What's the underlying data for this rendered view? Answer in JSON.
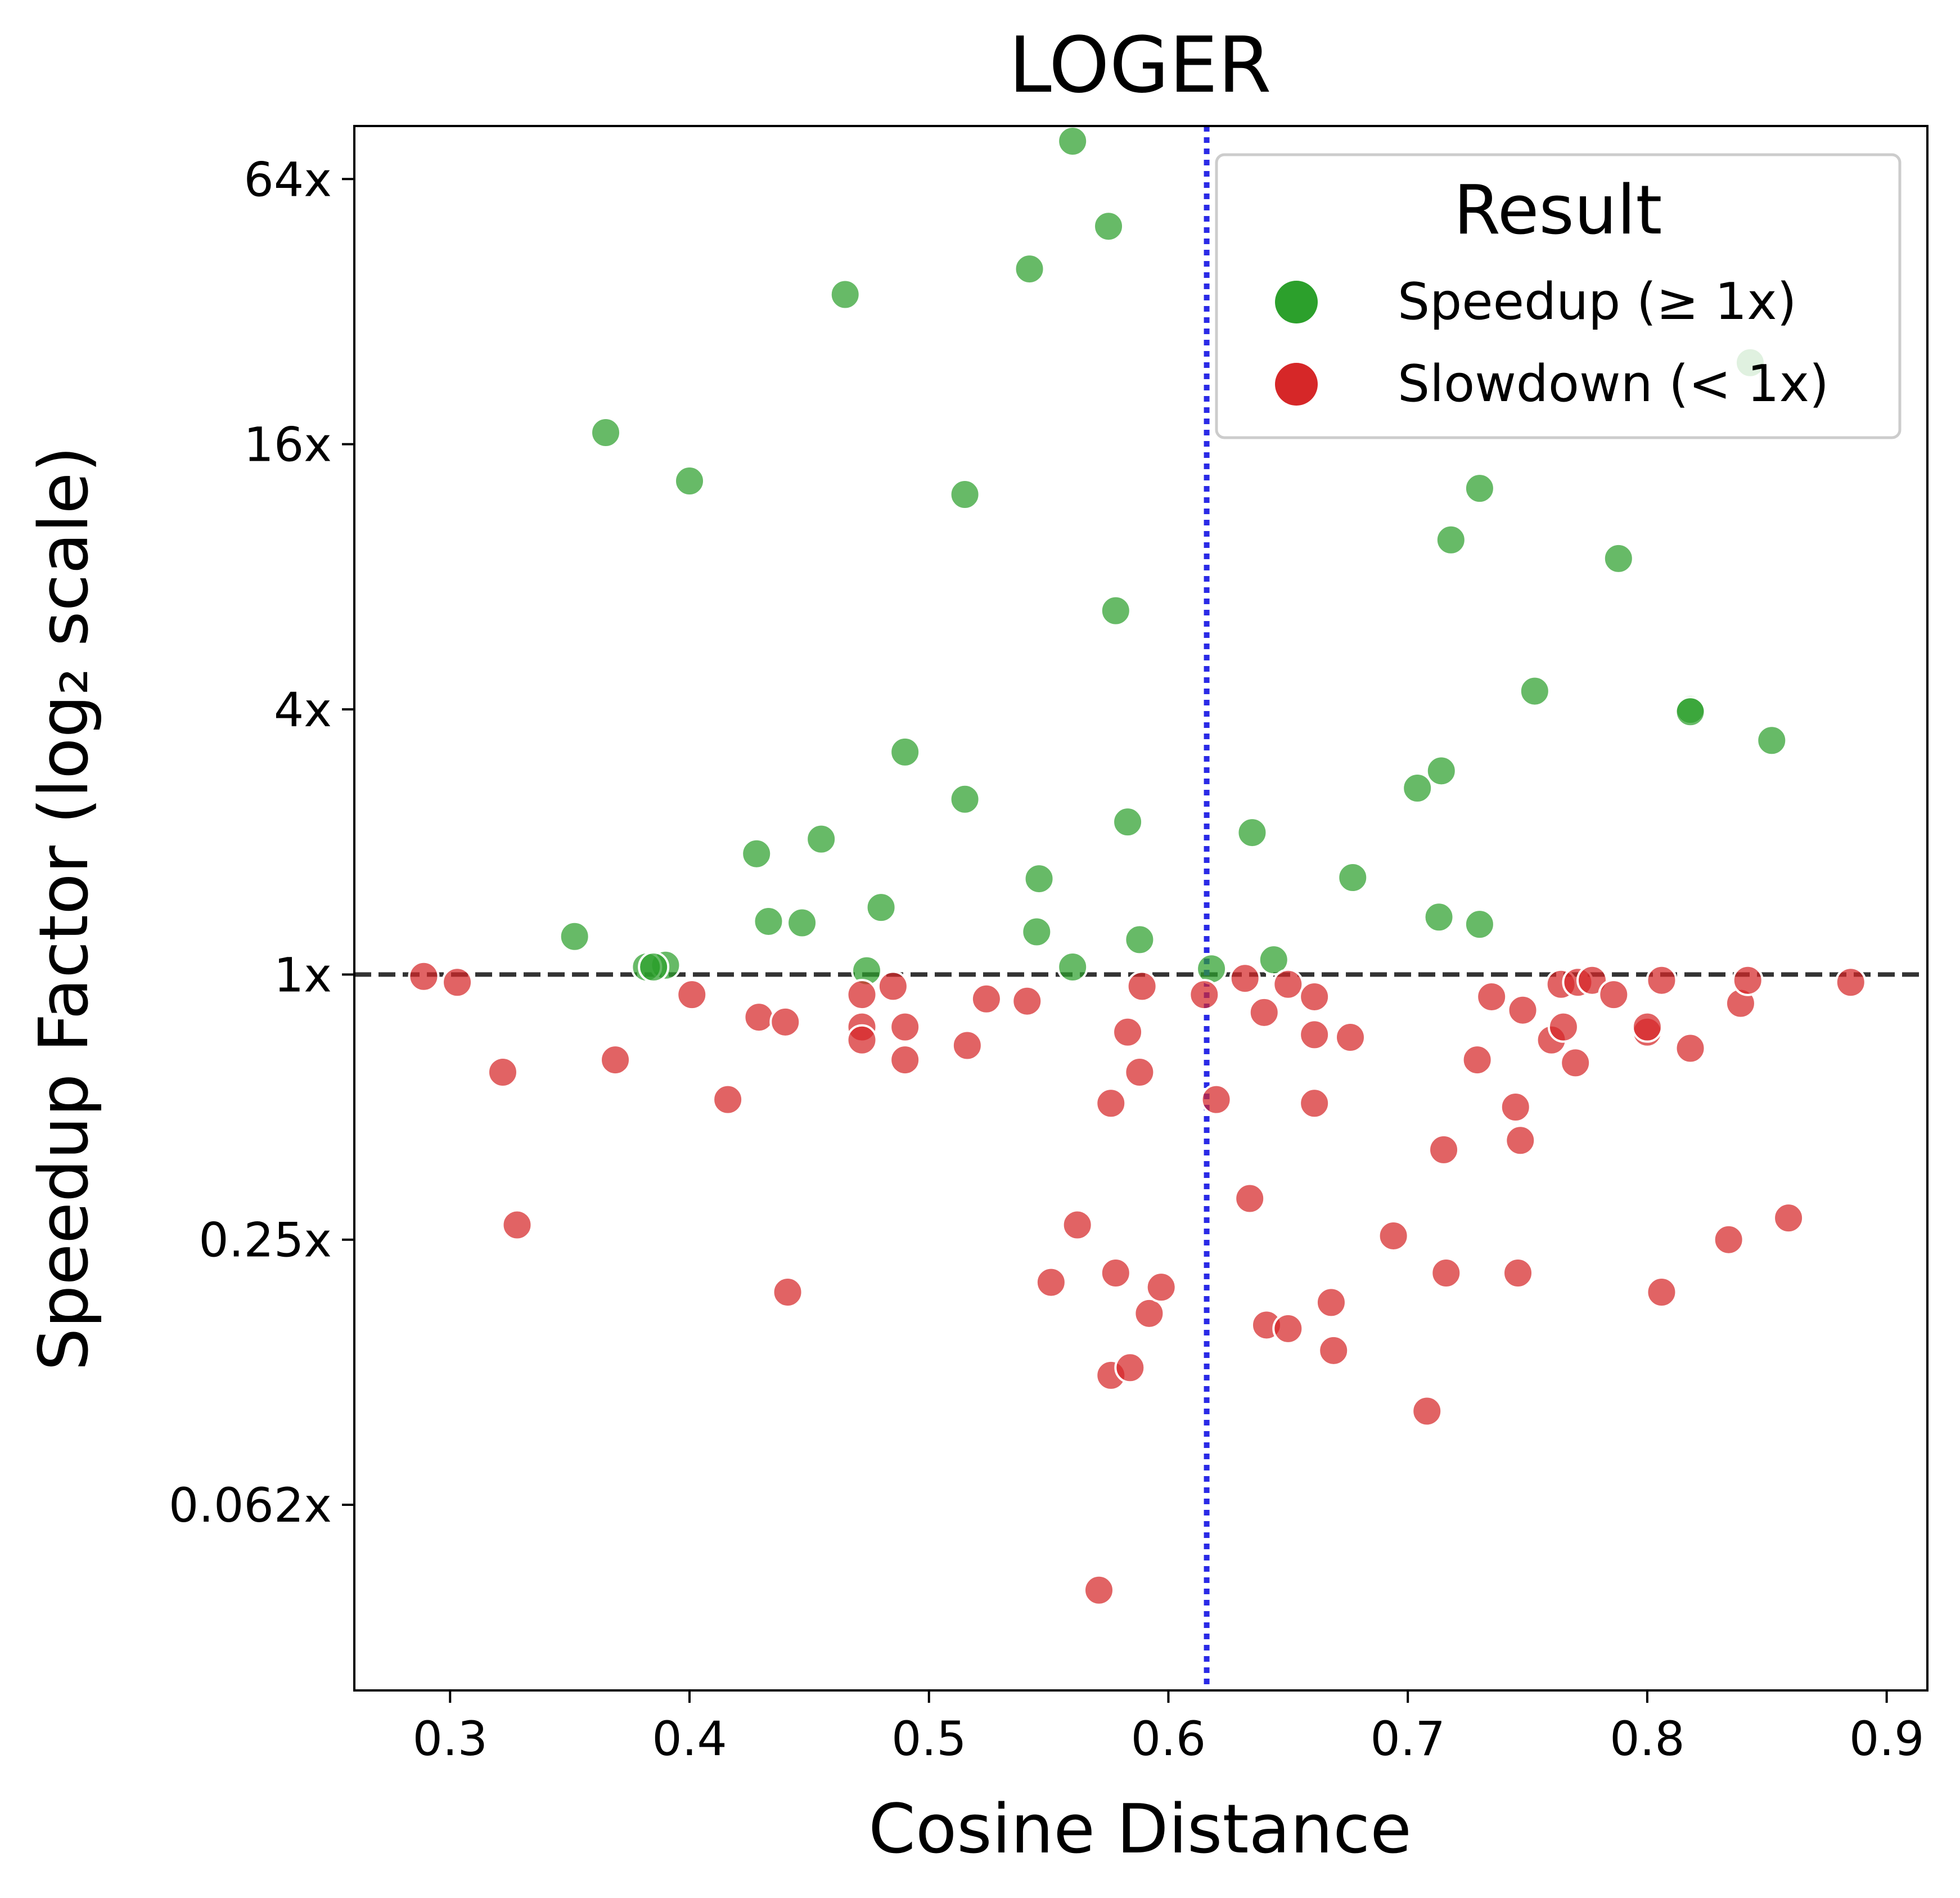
{
  "chart_data": {
    "type": "scatter",
    "title": "LOGER",
    "xlabel": "Cosine Distance",
    "ylabel": "Speedup Factor (log₂ scale)",
    "xlim": [
      0.26,
      0.917
    ],
    "ylim_log2": [
      -5.4,
      6.4
    ],
    "y_scale": "log2",
    "x_ticks": [
      {
        "value": 0.3,
        "label": "0.3"
      },
      {
        "value": 0.4,
        "label": "0.4"
      },
      {
        "value": 0.5,
        "label": "0.5"
      },
      {
        "value": 0.6,
        "label": "0.6"
      },
      {
        "value": 0.7,
        "label": "0.7"
      },
      {
        "value": 0.8,
        "label": "0.8"
      },
      {
        "value": 0.9,
        "label": "0.9"
      }
    ],
    "y_ticks": [
      {
        "value": 64,
        "label": "64x"
      },
      {
        "value": 16,
        "label": "16x"
      },
      {
        "value": 4,
        "label": "4x"
      },
      {
        "value": 1,
        "label": "1x"
      },
      {
        "value": 0.25,
        "label": "0.25x"
      },
      {
        "value": 0.0625,
        "label": "0.062x"
      }
    ],
    "reference_lines": {
      "horizontal": {
        "y": 1,
        "style": "dashed",
        "color": "#333333"
      },
      "vertical": {
        "x": 0.616,
        "style": "dotted",
        "color": "#2a2ae6"
      }
    },
    "grid": false,
    "legend": {
      "title": "Result",
      "placement": "top-right",
      "entries": [
        {
          "label": "Speedup (≥ 1x)",
          "color": "#2ca02c"
        },
        {
          "label": "Slowdown (< 1x)",
          "color": "#d62728"
        }
      ]
    },
    "series": [
      {
        "name": "Speedup (≥ 1x)",
        "color": "#2ca02c",
        "points": [
          {
            "x": 0.56,
            "y": 78
          },
          {
            "x": 0.575,
            "y": 50
          },
          {
            "x": 0.542,
            "y": 40
          },
          {
            "x": 0.465,
            "y": 35
          },
          {
            "x": 0.365,
            "y": 17
          },
          {
            "x": 0.4,
            "y": 13.2
          },
          {
            "x": 0.515,
            "y": 12.3
          },
          {
            "x": 0.578,
            "y": 6.7
          },
          {
            "x": 0.843,
            "y": 24.5
          },
          {
            "x": 0.73,
            "y": 12.7
          },
          {
            "x": 0.718,
            "y": 9.7
          },
          {
            "x": 0.788,
            "y": 8.8
          },
          {
            "x": 0.753,
            "y": 4.4
          },
          {
            "x": 0.818,
            "y": 4.0
          },
          {
            "x": 0.818,
            "y": 3.95
          },
          {
            "x": 0.852,
            "y": 3.4
          },
          {
            "x": 0.49,
            "y": 3.2
          },
          {
            "x": 0.714,
            "y": 2.9
          },
          {
            "x": 0.704,
            "y": 2.65
          },
          {
            "x": 0.515,
            "y": 2.5
          },
          {
            "x": 0.583,
            "y": 2.22
          },
          {
            "x": 0.635,
            "y": 2.1
          },
          {
            "x": 0.455,
            "y": 2.03
          },
          {
            "x": 0.428,
            "y": 1.88
          },
          {
            "x": 0.546,
            "y": 1.65
          },
          {
            "x": 0.677,
            "y": 1.66
          },
          {
            "x": 0.48,
            "y": 1.42
          },
          {
            "x": 0.713,
            "y": 1.35
          },
          {
            "x": 0.433,
            "y": 1.32
          },
          {
            "x": 0.447,
            "y": 1.31
          },
          {
            "x": 0.73,
            "y": 1.3
          },
          {
            "x": 0.352,
            "y": 1.22
          },
          {
            "x": 0.545,
            "y": 1.25
          },
          {
            "x": 0.588,
            "y": 1.2
          },
          {
            "x": 0.644,
            "y": 1.08
          },
          {
            "x": 0.39,
            "y": 1.05
          },
          {
            "x": 0.382,
            "y": 1.04
          },
          {
            "x": 0.385,
            "y": 1.04
          },
          {
            "x": 0.56,
            "y": 1.04
          },
          {
            "x": 0.474,
            "y": 1.02
          },
          {
            "x": 0.618,
            "y": 1.03
          }
        ]
      },
      {
        "name": "Slowdown (< 1x)",
        "color": "#d62728",
        "points": [
          {
            "x": 0.289,
            "y": 0.99
          },
          {
            "x": 0.303,
            "y": 0.96
          },
          {
            "x": 0.322,
            "y": 0.6
          },
          {
            "x": 0.328,
            "y": 0.27
          },
          {
            "x": 0.369,
            "y": 0.64
          },
          {
            "x": 0.401,
            "y": 0.9
          },
          {
            "x": 0.416,
            "y": 0.52
          },
          {
            "x": 0.429,
            "y": 0.8
          },
          {
            "x": 0.44,
            "y": 0.78
          },
          {
            "x": 0.441,
            "y": 0.19
          },
          {
            "x": 0.472,
            "y": 0.9
          },
          {
            "x": 0.472,
            "y": 0.76
          },
          {
            "x": 0.472,
            "y": 0.71
          },
          {
            "x": 0.485,
            "y": 0.94
          },
          {
            "x": 0.49,
            "y": 0.76
          },
          {
            "x": 0.49,
            "y": 0.64
          },
          {
            "x": 0.516,
            "y": 0.69
          },
          {
            "x": 0.524,
            "y": 0.88
          },
          {
            "x": 0.541,
            "y": 0.87
          },
          {
            "x": 0.551,
            "y": 0.2
          },
          {
            "x": 0.562,
            "y": 0.27
          },
          {
            "x": 0.571,
            "y": 0.04
          },
          {
            "x": 0.576,
            "y": 0.51
          },
          {
            "x": 0.576,
            "y": 0.123
          },
          {
            "x": 0.578,
            "y": 0.21
          },
          {
            "x": 0.584,
            "y": 0.128
          },
          {
            "x": 0.583,
            "y": 0.74
          },
          {
            "x": 0.588,
            "y": 0.6
          },
          {
            "x": 0.589,
            "y": 0.94
          },
          {
            "x": 0.592,
            "y": 0.17
          },
          {
            "x": 0.597,
            "y": 0.195
          },
          {
            "x": 0.615,
            "y": 0.9
          },
          {
            "x": 0.62,
            "y": 0.52
          },
          {
            "x": 0.632,
            "y": 0.98
          },
          {
            "x": 0.634,
            "y": 0.31
          },
          {
            "x": 0.64,
            "y": 0.82
          },
          {
            "x": 0.641,
            "y": 0.16
          },
          {
            "x": 0.65,
            "y": 0.157
          },
          {
            "x": 0.65,
            "y": 0.95
          },
          {
            "x": 0.661,
            "y": 0.89
          },
          {
            "x": 0.661,
            "y": 0.73
          },
          {
            "x": 0.661,
            "y": 0.51
          },
          {
            "x": 0.668,
            "y": 0.18
          },
          {
            "x": 0.669,
            "y": 0.14
          },
          {
            "x": 0.676,
            "y": 0.72
          },
          {
            "x": 0.694,
            "y": 0.255
          },
          {
            "x": 0.708,
            "y": 0.102
          },
          {
            "x": 0.715,
            "y": 0.4
          },
          {
            "x": 0.716,
            "y": 0.21
          },
          {
            "x": 0.729,
            "y": 0.64
          },
          {
            "x": 0.735,
            "y": 0.89
          },
          {
            "x": 0.745,
            "y": 0.5
          },
          {
            "x": 0.746,
            "y": 0.21
          },
          {
            "x": 0.747,
            "y": 0.42
          },
          {
            "x": 0.748,
            "y": 0.83
          },
          {
            "x": 0.76,
            "y": 0.71
          },
          {
            "x": 0.764,
            "y": 0.95
          },
          {
            "x": 0.765,
            "y": 0.76
          },
          {
            "x": 0.77,
            "y": 0.63
          },
          {
            "x": 0.771,
            "y": 0.96
          },
          {
            "x": 0.777,
            "y": 0.97
          },
          {
            "x": 0.786,
            "y": 0.9
          },
          {
            "x": 0.8,
            "y": 0.74
          },
          {
            "x": 0.8,
            "y": 0.76
          },
          {
            "x": 0.806,
            "y": 0.97
          },
          {
            "x": 0.806,
            "y": 0.19
          },
          {
            "x": 0.818,
            "y": 0.68
          },
          {
            "x": 0.834,
            "y": 0.25
          },
          {
            "x": 0.839,
            "y": 0.86
          },
          {
            "x": 0.842,
            "y": 0.97
          },
          {
            "x": 0.859,
            "y": 0.28
          },
          {
            "x": 0.885,
            "y": 0.96
          }
        ]
      }
    ]
  }
}
